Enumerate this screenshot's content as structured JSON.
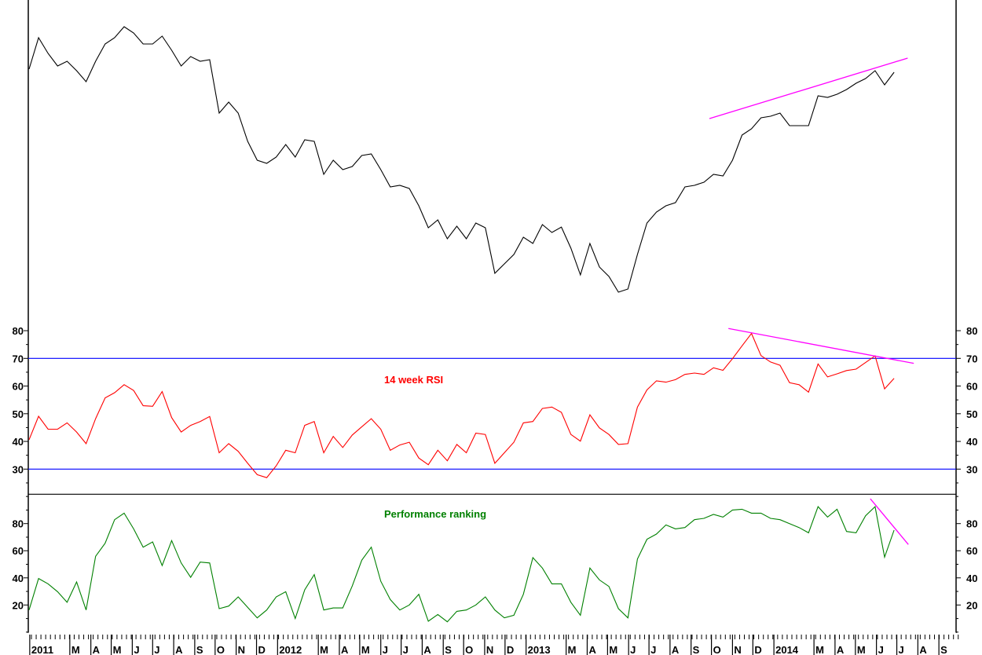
{
  "chart_data": [
    {
      "type": "line",
      "panel": "price",
      "title": "",
      "xlabel": "",
      "ylabel": "",
      "y_axis_labels": "none",
      "ylim": [
        0,
        100
      ],
      "color": "#000000",
      "x": [
        "2010-12-31",
        "2011-01-14",
        "2011-01-28",
        "2011-02-11",
        "2011-02-25",
        "2011-03-11",
        "2011-03-25",
        "2011-04-08",
        "2011-04-22",
        "2011-05-06",
        "2011-05-20",
        "2011-06-03",
        "2011-06-17",
        "2011-07-01",
        "2011-07-15",
        "2011-07-29",
        "2011-08-12",
        "2011-08-26",
        "2011-09-09",
        "2011-09-23",
        "2011-10-07",
        "2011-10-21",
        "2011-11-04",
        "2011-11-18",
        "2011-12-02",
        "2011-12-16",
        "2011-12-30",
        "2012-01-13",
        "2012-01-27",
        "2012-02-10",
        "2012-02-24",
        "2012-03-09",
        "2012-03-23",
        "2012-04-06",
        "2012-04-20",
        "2012-05-04",
        "2012-05-18",
        "2012-06-01",
        "2012-06-15",
        "2012-06-29",
        "2012-07-13",
        "2012-07-27",
        "2012-08-10",
        "2012-08-24",
        "2012-09-07",
        "2012-09-21",
        "2012-10-05",
        "2012-10-19",
        "2012-11-02",
        "2012-11-16",
        "2012-11-30",
        "2012-12-14",
        "2012-12-28",
        "2013-01-11",
        "2013-01-25",
        "2013-02-08",
        "2013-02-22",
        "2013-03-08",
        "2013-03-22",
        "2013-04-05",
        "2013-04-19",
        "2013-05-03",
        "2013-05-17",
        "2013-05-31",
        "2013-06-14",
        "2013-06-28",
        "2013-07-12",
        "2013-07-26",
        "2013-08-09",
        "2013-08-23",
        "2013-09-06",
        "2013-09-20",
        "2013-10-04",
        "2013-10-18",
        "2013-11-01",
        "2013-11-15",
        "2013-11-29",
        "2013-12-13",
        "2013-12-27",
        "2014-01-10",
        "2014-01-24",
        "2014-02-07",
        "2014-02-21",
        "2014-03-07",
        "2014-03-21",
        "2014-04-04",
        "2014-04-18",
        "2014-05-02",
        "2014-05-16",
        "2014-05-30",
        "2014-06-13",
        "2014-06-27"
      ],
      "values": [
        78,
        88,
        83,
        79,
        80.5,
        77.5,
        74,
        80.5,
        86,
        88,
        91.5,
        89.5,
        86,
        86,
        88.5,
        84,
        79,
        82,
        80.5,
        81,
        64,
        67.5,
        64,
        55,
        49,
        48,
        50,
        54,
        50,
        55.5,
        55,
        44.5,
        49,
        46,
        47,
        50.5,
        51,
        46,
        40.5,
        41,
        40,
        34.5,
        27.5,
        30,
        24,
        28,
        24,
        29,
        27.5,
        13,
        16,
        19,
        24.5,
        22.5,
        28.5,
        26,
        27.7,
        21,
        12.5,
        22.5,
        15,
        12,
        7,
        8,
        19,
        29,
        32.5,
        34.5,
        35.5,
        40.5,
        41,
        42,
        44.5,
        44,
        49,
        57,
        59,
        62.5,
        63,
        64,
        60,
        60,
        60,
        69.5,
        69,
        70,
        71.5,
        73.5,
        75,
        77.5,
        73,
        77
      ],
      "trendline": {
        "color": "#ff00ff",
        "x": [
          "2013-09-28",
          "2014-07-17"
        ],
        "y": [
          62.25,
          81.5
        ]
      }
    },
    {
      "type": "line",
      "panel": "rsi",
      "title": "14 week RSI",
      "xlabel": "",
      "ylabel": "",
      "ylim": [
        21,
        84
      ],
      "yticks": [
        30,
        40,
        50,
        60,
        70,
        80
      ],
      "tick_labels": [
        "30",
        "40",
        "50",
        "60",
        "70",
        "80"
      ],
      "color": "#ff0000",
      "reference_lines": {
        "values": [
          70,
          30
        ],
        "color": "#0000ff"
      },
      "values": [
        40.6,
        49.1,
        44.4,
        44.4,
        46.7,
        43.4,
        39.2,
        48.2,
        55.7,
        57.6,
        60.5,
        58.4,
        52.9,
        52.7,
        58,
        48.6,
        43.4,
        45.8,
        47.2,
        49,
        35.9,
        39.2,
        36.4,
        32.1,
        28,
        26.9,
        31.2,
        36.8,
        35.9,
        45.8,
        47.2,
        35.9,
        41.8,
        37.8,
        42.3,
        45.3,
        48.2,
        44.4,
        36.8,
        38.7,
        39.7,
        34,
        31.6,
        36.8,
        33,
        38.9,
        35.9,
        43,
        42.5,
        32.1,
        35.9,
        39.7,
        46.7,
        47.2,
        51.9,
        52.4,
        50.5,
        42.5,
        40.1,
        49.6,
        44.9,
        42.5,
        38.9,
        39.2,
        52.4,
        58.6,
        61.9,
        61.4,
        62.3,
        64.2,
        64.7,
        64.2,
        66.6,
        65.7,
        69.9,
        74.5,
        79,
        71,
        68.7,
        67.5,
        61.2,
        60.5,
        57.8,
        68,
        63.3,
        64.4,
        65.6,
        66.1,
        68.5,
        70.9,
        59,
        62.8
      ],
      "trendline": {
        "color": "#ff00ff",
        "x": [
          "2013-10-26",
          "2014-07-26"
        ],
        "y": [
          80.8,
          68.2
        ]
      }
    },
    {
      "type": "line",
      "panel": "performance",
      "title": "Performance ranking",
      "xlabel": "",
      "ylabel": "",
      "ylim": [
        0,
        101.5
      ],
      "yticks": [
        20,
        40,
        60,
        80
      ],
      "tick_labels": [
        "20",
        "40",
        "60",
        "80"
      ],
      "color": "#008000",
      "values": [
        16.3,
        39.5,
        35.6,
        29.8,
        22,
        37,
        16.3,
        55.9,
        65.5,
        82.9,
        87.7,
        76.1,
        62.6,
        66.5,
        49.1,
        67.5,
        51,
        40.4,
        51.6,
        51,
        17.3,
        19.2,
        26,
        18.2,
        10.5,
        16.3,
        26,
        29.8,
        10,
        31.2,
        42.4,
        16.3,
        17.8,
        17.8,
        34,
        53,
        62.6,
        37.5,
        24,
        16.3,
        20,
        27.9,
        8,
        13,
        7.6,
        15.3,
        16.3,
        20,
        26,
        16.3,
        10.5,
        12.4,
        27.9,
        54.9,
        47.2,
        35.6,
        35.6,
        22,
        12.4,
        47.2,
        38.5,
        33.7,
        17.3,
        10.5,
        53.9,
        68.4,
        72.3,
        79,
        76.1,
        77.1,
        82.9,
        83.9,
        86.8,
        84.8,
        90,
        90.6,
        87.7,
        87.7,
        83.9,
        82.9,
        80,
        77.1,
        73.2,
        92.5,
        84.8,
        90.6,
        74.2,
        73.2,
        85.8,
        92.5,
        55.3,
        75.2
      ],
      "trendline": {
        "color": "#ff00ff",
        "x": [
          "2014-05-23",
          "2014-07-18"
        ],
        "y": [
          98.3,
          64.6
        ]
      }
    }
  ],
  "x_axis": {
    "month_labels": [
      {
        "date": "2011-01-01",
        "label": "2011"
      },
      {
        "date": "2011-03-01",
        "label": "M"
      },
      {
        "date": "2011-04-01",
        "label": "A"
      },
      {
        "date": "2011-05-01",
        "label": "M"
      },
      {
        "date": "2011-06-01",
        "label": "J"
      },
      {
        "date": "2011-07-01",
        "label": "J"
      },
      {
        "date": "2011-08-01",
        "label": "A"
      },
      {
        "date": "2011-09-01",
        "label": "S"
      },
      {
        "date": "2011-10-01",
        "label": "O"
      },
      {
        "date": "2011-11-01",
        "label": "N"
      },
      {
        "date": "2011-12-01",
        "label": "D"
      },
      {
        "date": "2012-01-01",
        "label": "2012"
      },
      {
        "date": "2012-03-01",
        "label": "M"
      },
      {
        "date": "2012-04-01",
        "label": "A"
      },
      {
        "date": "2012-05-01",
        "label": "M"
      },
      {
        "date": "2012-06-01",
        "label": "J"
      },
      {
        "date": "2012-07-01",
        "label": "J"
      },
      {
        "date": "2012-08-01",
        "label": "A"
      },
      {
        "date": "2012-09-01",
        "label": "S"
      },
      {
        "date": "2012-10-01",
        "label": "O"
      },
      {
        "date": "2012-11-01",
        "label": "N"
      },
      {
        "date": "2012-12-01",
        "label": "D"
      },
      {
        "date": "2013-01-01",
        "label": "2013"
      },
      {
        "date": "2013-03-01",
        "label": "M"
      },
      {
        "date": "2013-04-01",
        "label": "A"
      },
      {
        "date": "2013-05-01",
        "label": "M"
      },
      {
        "date": "2013-06-01",
        "label": "J"
      },
      {
        "date": "2013-07-01",
        "label": "J"
      },
      {
        "date": "2013-08-01",
        "label": "A"
      },
      {
        "date": "2013-09-01",
        "label": "S"
      },
      {
        "date": "2013-10-01",
        "label": "O"
      },
      {
        "date": "2013-11-01",
        "label": "N"
      },
      {
        "date": "2013-12-01",
        "label": "D"
      },
      {
        "date": "2014-01-01",
        "label": "2014"
      },
      {
        "date": "2014-03-01",
        "label": "M"
      },
      {
        "date": "2014-04-01",
        "label": "A"
      },
      {
        "date": "2014-05-01",
        "label": "M"
      },
      {
        "date": "2014-06-01",
        "label": "J"
      },
      {
        "date": "2014-07-01",
        "label": "J"
      },
      {
        "date": "2014-08-01",
        "label": "A"
      },
      {
        "date": "2014-09-01",
        "label": "S"
      }
    ]
  }
}
